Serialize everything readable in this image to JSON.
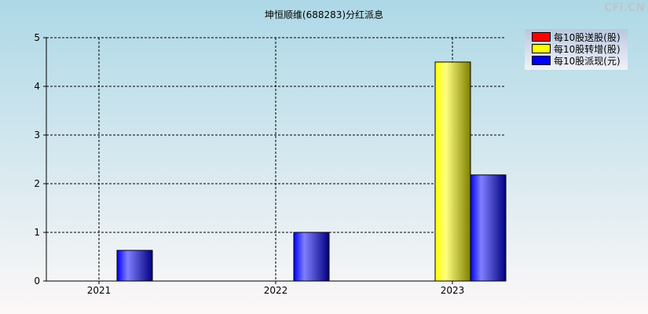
{
  "watermark": "CFi.CN",
  "chart_data": {
    "type": "bar",
    "title": "坤恒顺维(688283)分红派息",
    "categories": [
      "2021",
      "2022",
      "2023"
    ],
    "series": [
      {
        "name": "每10股送股(股)",
        "color": "#ff0000",
        "values": [
          0,
          0,
          0
        ]
      },
      {
        "name": "每10股转增(股)",
        "color": "#ffff00",
        "values": [
          0,
          0,
          4.5
        ]
      },
      {
        "name": "每10股派现(元)",
        "color": "#0000ff",
        "values": [
          0.63,
          1.0,
          2.18
        ]
      }
    ],
    "ylim": [
      0,
      5
    ],
    "yticks": [
      "0",
      "1",
      "2",
      "3",
      "4",
      "5"
    ],
    "grid": true,
    "legend": "top-right"
  }
}
